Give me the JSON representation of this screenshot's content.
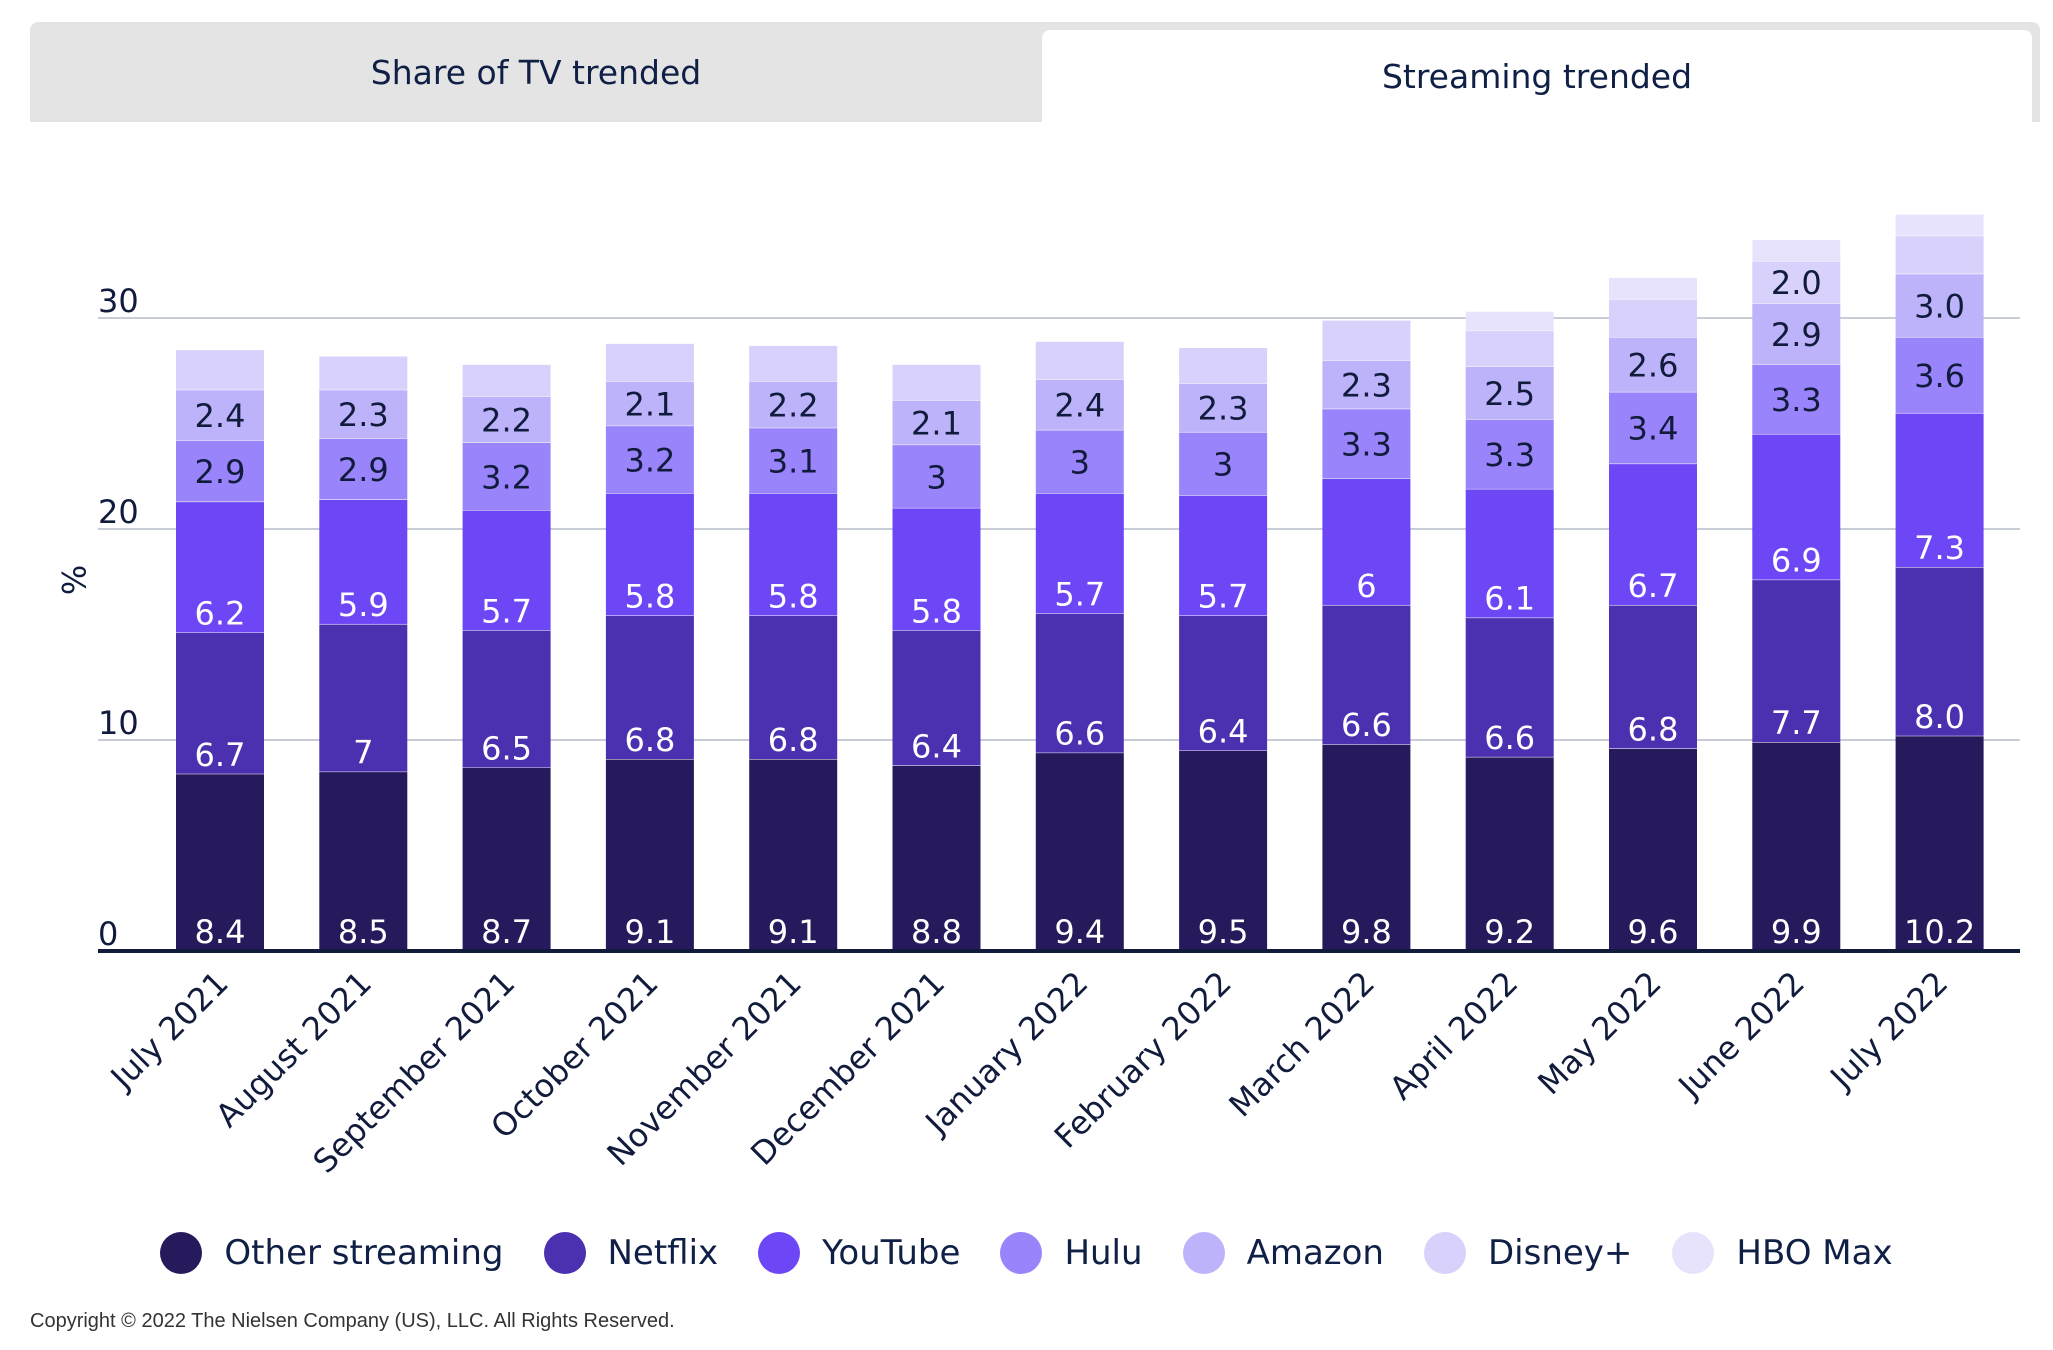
{
  "tabs": {
    "share_label": "Share of TV trended",
    "streaming_label": "Streaming trended"
  },
  "copyright": "Copyright © 2022 The Nielsen Company (US), LLC. All Rights Reserved.",
  "chart_data": {
    "type": "bar",
    "stacked": true,
    "title": "",
    "xlabel": "",
    "ylabel": "%",
    "ylim": [
      0,
      35
    ],
    "yticks": [
      0,
      10,
      20,
      30
    ],
    "legend_position": "bottom",
    "categories": [
      "July 2021",
      "August 2021",
      "September 2021",
      "October 2021",
      "November 2021",
      "December 2021",
      "January 2022",
      "February 2022",
      "March 2022",
      "April 2022",
      "May 2022",
      "June 2022",
      "July 2022"
    ],
    "series": [
      {
        "name": "Other streaming",
        "color": "#271a5c",
        "label_color": "#ffffff",
        "values": [
          8.4,
          8.5,
          8.7,
          9.1,
          9.1,
          8.8,
          9.4,
          9.5,
          9.8,
          9.2,
          9.6,
          9.9,
          10.2
        ],
        "labels": [
          "8.4",
          "8.5",
          "8.7",
          "9.1",
          "9.1",
          "8.8",
          "9.4",
          "9.5",
          "9.8",
          "9.2",
          "9.6",
          "9.9",
          "10.2"
        ]
      },
      {
        "name": "Netflix",
        "color": "#4b30b0",
        "label_color": "#ffffff",
        "values": [
          6.7,
          7,
          6.5,
          6.8,
          6.8,
          6.4,
          6.6,
          6.4,
          6.6,
          6.6,
          6.8,
          7.7,
          8.0
        ],
        "labels": [
          "6.7",
          "7",
          "6.5",
          "6.8",
          "6.8",
          "6.4",
          "6.6",
          "6.4",
          "6.6",
          "6.6",
          "6.8",
          "7.7",
          "8.0"
        ]
      },
      {
        "name": "YouTube",
        "color": "#6d46f5",
        "label_color": "#ffffff",
        "values": [
          6.2,
          5.9,
          5.7,
          5.8,
          5.8,
          5.8,
          5.7,
          5.7,
          6,
          6.1,
          6.7,
          6.9,
          7.3
        ],
        "labels": [
          "6.2",
          "5.9",
          "5.7",
          "5.8",
          "5.8",
          "5.8",
          "5.7",
          "5.7",
          "6",
          "6.1",
          "6.7",
          "6.9",
          "7.3"
        ]
      },
      {
        "name": "Hulu",
        "color": "#9a84fb",
        "label_color": "#111b3c",
        "values": [
          2.9,
          2.9,
          3.2,
          3.2,
          3.1,
          3,
          3,
          3,
          3.3,
          3.3,
          3.4,
          3.3,
          3.6
        ],
        "labels": [
          "2.9",
          "2.9",
          "3.2",
          "3.2",
          "3.1",
          "3",
          "3",
          "3",
          "3.3",
          "3.3",
          "3.4",
          "3.3",
          "3.6"
        ]
      },
      {
        "name": "Amazon",
        "color": "#bdb3fa",
        "label_color": "#111b3c",
        "values": [
          2.4,
          2.3,
          2.2,
          2.1,
          2.2,
          2.1,
          2.4,
          2.3,
          2.3,
          2.5,
          2.6,
          2.9,
          3.0
        ],
        "labels": [
          "2.4",
          "2.3",
          "2.2",
          "2.1",
          "2.2",
          "2.1",
          "2.4",
          "2.3",
          "2.3",
          "2.5",
          "2.6",
          "2.9",
          "3.0"
        ]
      },
      {
        "name": "Disney+",
        "color": "#d8d1fc",
        "label_color": "#111b3c",
        "values": [
          1.9,
          1.6,
          1.5,
          1.8,
          1.7,
          1.7,
          1.8,
          1.7,
          1.9,
          1.7,
          1.8,
          2.0,
          1.8
        ],
        "labels": [
          "",
          "",
          "",
          "",
          "",
          "",
          "",
          "",
          "",
          "",
          "",
          "2.0",
          ""
        ]
      },
      {
        "name": "HBO Max",
        "color": "#e8e3fc",
        "label_color": "#111b3c",
        "values": [
          0,
          0,
          0,
          0,
          0,
          0,
          0,
          0,
          0,
          0.9,
          1.0,
          1.0,
          1.0
        ],
        "labels": [
          "",
          "",
          "",
          "",
          "",
          "",
          "",
          "",
          "",
          "",
          "",
          "",
          ""
        ]
      }
    ]
  }
}
